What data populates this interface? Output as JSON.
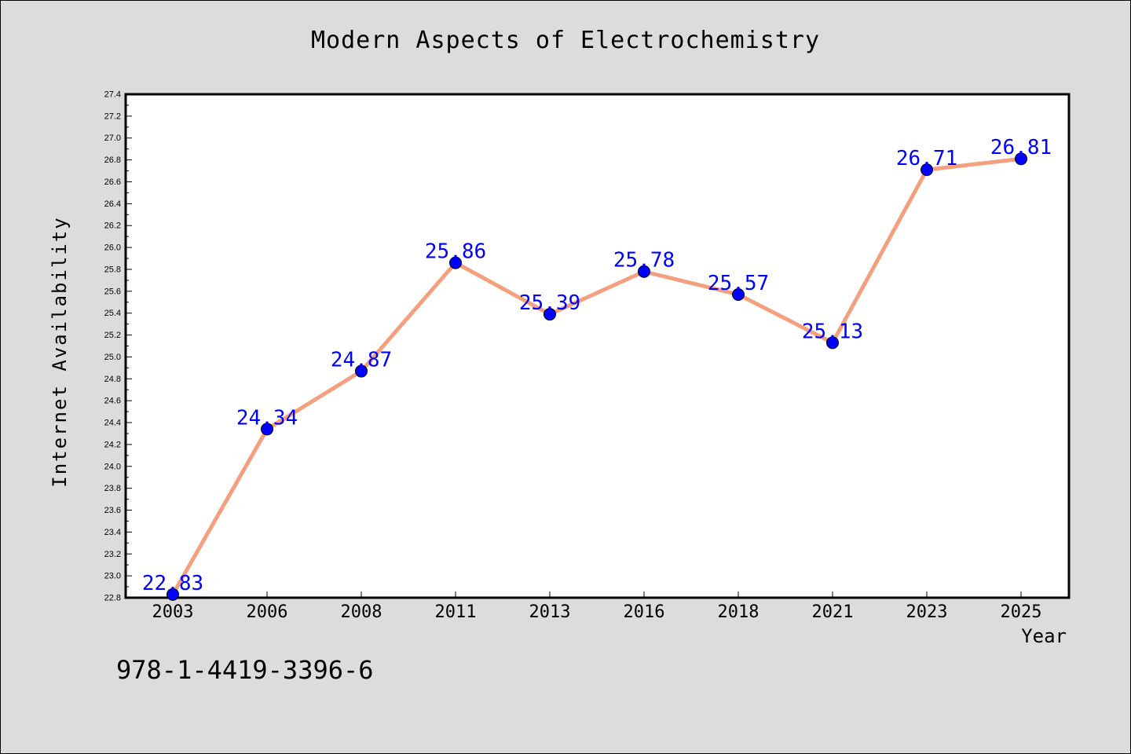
{
  "footer": {
    "code": "978-1-4419-3396-6"
  },
  "chart_data": {
    "type": "line",
    "title": "Modern Aspects of Electrochemistry",
    "xlabel": "Year",
    "ylabel": "Internet Availability",
    "categories": [
      "2003",
      "2006",
      "2008",
      "2011",
      "2013",
      "2016",
      "2018",
      "2021",
      "2023",
      "2025"
    ],
    "series": [
      {
        "values": [
          22.83,
          24.34,
          24.87,
          25.86,
          25.39,
          25.78,
          25.57,
          25.13,
          26.71,
          26.81
        ],
        "data_labels": [
          "22.83",
          "24.34",
          "24.87",
          "25.86",
          "25.39",
          "25.78",
          "25.57",
          "25.13",
          "26.71",
          "26.81"
        ]
      }
    ],
    "ylim": [
      22.8,
      27.4
    ],
    "yticks": [
      "22.8",
      "23.0",
      "23.2",
      "23.4",
      "23.6",
      "23.8",
      "24.0",
      "24.2",
      "24.4",
      "24.6",
      "24.8",
      "25.0",
      "25.2",
      "25.4",
      "25.6",
      "25.8",
      "26.0",
      "26.2",
      "26.4",
      "26.6",
      "26.8",
      "27.0",
      "27.2",
      "27.4"
    ],
    "grid": false,
    "colors": {
      "line": "#f4a07e",
      "marker": "#0000ff",
      "label": "#0000ff",
      "plot_bg": "#ffffff",
      "page_bg": "#dcdcdc"
    }
  }
}
